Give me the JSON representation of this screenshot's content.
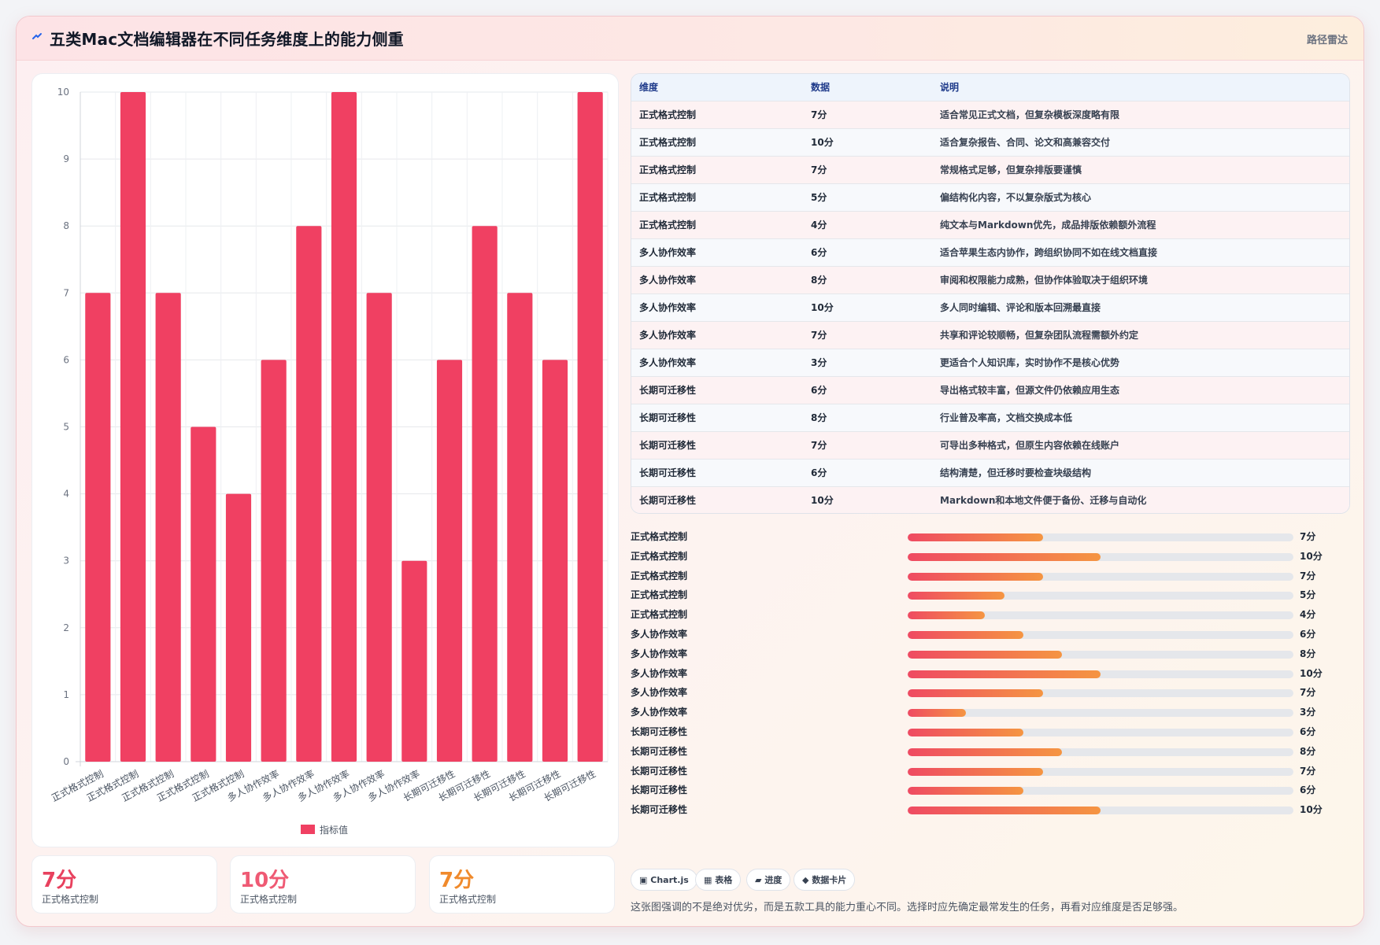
{
  "header": {
    "title": "五类Mac文档编辑器在不同任务维度上的能力侧重",
    "tag": "路径雷达",
    "icon": "route-icon"
  },
  "colors": {
    "bar": "#f04062",
    "accent_red": "#e8415e",
    "accent_pink": "#ef5a74",
    "accent_orange": "#f08a2c"
  },
  "chart_data": {
    "type": "bar",
    "categories": [
      "正式格式控制",
      "正式格式控制",
      "正式格式控制",
      "正式格式控制",
      "正式格式控制",
      "多人协作效率",
      "多人协作效率",
      "多人协作效率",
      "多人协作效率",
      "多人协作效率",
      "长期可迁移性",
      "长期可迁移性",
      "长期可迁移性",
      "长期可迁移性",
      "长期可迁移性"
    ],
    "series": [
      {
        "name": "指标值",
        "values": [
          7,
          10,
          7,
          5,
          4,
          6,
          8,
          10,
          7,
          3,
          6,
          8,
          7,
          6,
          10
        ]
      }
    ],
    "ylim": [
      0,
      10
    ],
    "yticks": [
      "0",
      "1",
      "2",
      "3",
      "4",
      "5",
      "6",
      "7",
      "8",
      "9",
      "10"
    ],
    "grid": true,
    "legend": "bottom"
  },
  "table": {
    "headers": [
      "维度",
      "数据",
      "说明"
    ],
    "rows": [
      [
        "正式格式控制",
        "7分",
        "适合常见正式文档，但复杂模板深度略有限"
      ],
      [
        "正式格式控制",
        "10分",
        "适合复杂报告、合同、论文和高兼容交付"
      ],
      [
        "正式格式控制",
        "7分",
        "常规格式足够，但复杂排版要谨慎"
      ],
      [
        "正式格式控制",
        "5分",
        "偏结构化内容，不以复杂版式为核心"
      ],
      [
        "正式格式控制",
        "4分",
        "纯文本与Markdown优先，成品排版依赖额外流程"
      ],
      [
        "多人协作效率",
        "6分",
        "适合苹果生态内协作，跨组织协同不如在线文档直接"
      ],
      [
        "多人协作效率",
        "8分",
        "审阅和权限能力成熟，但协作体验取决于组织环境"
      ],
      [
        "多人协作效率",
        "10分",
        "多人同时编辑、评论和版本回溯最直接"
      ],
      [
        "多人协作效率",
        "7分",
        "共享和评论较顺畅，但复杂团队流程需额外约定"
      ],
      [
        "多人协作效率",
        "3分",
        "更适合个人知识库，实时协作不是核心优势"
      ],
      [
        "长期可迁移性",
        "6分",
        "导出格式较丰富，但源文件仍依赖应用生态"
      ],
      [
        "长期可迁移性",
        "8分",
        "行业普及率高，文档交换成本低"
      ],
      [
        "长期可迁移性",
        "7分",
        "可导出多种格式，但原生内容依赖在线账户"
      ],
      [
        "长期可迁移性",
        "6分",
        "结构清楚，但迁移时要检查块级结构"
      ],
      [
        "长期可迁移性",
        "10分",
        "Markdown和本地文件便于备份、迁移与自动化"
      ]
    ]
  },
  "progress": [
    {
      "label": "正式格式控制",
      "value": 7,
      "text": "7分"
    },
    {
      "label": "正式格式控制",
      "value": 10,
      "text": "10分"
    },
    {
      "label": "正式格式控制",
      "value": 7,
      "text": "7分"
    },
    {
      "label": "正式格式控制",
      "value": 5,
      "text": "5分"
    },
    {
      "label": "正式格式控制",
      "value": 4,
      "text": "4分"
    },
    {
      "label": "多人协作效率",
      "value": 6,
      "text": "6分"
    },
    {
      "label": "多人协作效率",
      "value": 8,
      "text": "8分"
    },
    {
      "label": "多人协作效率",
      "value": 10,
      "text": "10分"
    },
    {
      "label": "多人协作效率",
      "value": 7,
      "text": "7分"
    },
    {
      "label": "多人协作效率",
      "value": 3,
      "text": "3分"
    },
    {
      "label": "长期可迁移性",
      "value": 6,
      "text": "6分"
    },
    {
      "label": "长期可迁移性",
      "value": 8,
      "text": "8分"
    },
    {
      "label": "长期可迁移性",
      "value": 7,
      "text": "7分"
    },
    {
      "label": "长期可迁移性",
      "value": 6,
      "text": "6分"
    },
    {
      "label": "长期可迁移性",
      "value": 10,
      "text": "10分"
    }
  ],
  "progress_max": 20,
  "stats": [
    {
      "value": "7分",
      "label": "正式格式控制",
      "color": "#e8415e"
    },
    {
      "value": "10分",
      "label": "正式格式控制",
      "color": "#ef5a74"
    },
    {
      "value": "7分",
      "label": "正式格式控制",
      "color": "#f08a2c"
    }
  ],
  "chips": [
    {
      "icon": "chart-icon",
      "glyph": "▣",
      "label": "Chart.js"
    },
    {
      "icon": "table-icon",
      "glyph": "▦",
      "label": "表格"
    },
    {
      "icon": "progress-icon",
      "glyph": "▰",
      "label": "进度"
    },
    {
      "icon": "card-icon",
      "glyph": "◆",
      "label": "数据卡片"
    }
  ],
  "footnote": "这张图强调的不是绝对优劣，而是五款工具的能力重心不同。选择时应先确定最常发生的任务，再看对应维度是否足够强。"
}
